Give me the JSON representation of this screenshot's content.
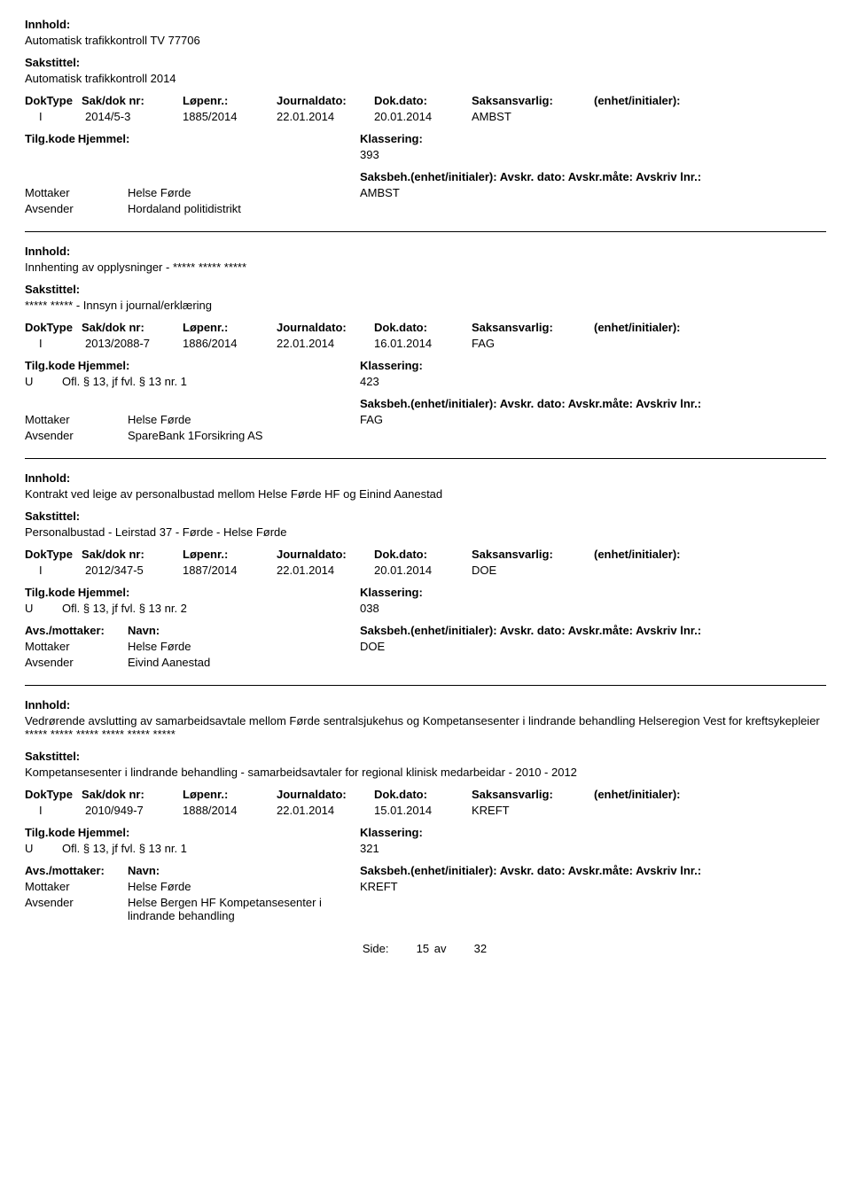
{
  "labels": {
    "innhold": "Innhold:",
    "sakstittel": "Sakstittel:",
    "doktype": "DokType",
    "sakdoknr": "Sak/dok nr:",
    "lopenr": "Løpenr.:",
    "journaldato": "Journaldato:",
    "dokdato": "Dok.dato:",
    "saksansvarlig": "Saksansvarlig:",
    "enhet": "(enhet/initialer):",
    "tilgkode": "Tilg.kode",
    "hjemmel": "Hjemmel:",
    "klassering": "Klassering:",
    "avsmottaker": "Avs./mottaker:",
    "navn": "Navn:",
    "saksbeh": "Saksbeh.(enhet/initialer):",
    "avskrdato": "Avskr. dato:",
    "avskrmate": "Avskr.måte:",
    "avskrivlnr": "Avskriv lnr.:"
  },
  "records": [
    {
      "innhold": "Automatisk trafikkontroll TV 77706",
      "sakstittel": "Automatisk trafikkontroll 2014",
      "doktype": "I",
      "sakdoknr": "2014/5-3",
      "lopenr": "1885/2014",
      "journaldato": "22.01.2014",
      "dokdato": "20.01.2014",
      "saksansvarlig": "AMBST",
      "tilgcode": "",
      "hjemmel": "",
      "klassering": "393",
      "showAvsHeader": false,
      "parties": [
        {
          "role": "Mottaker",
          "name": "Helse Førde",
          "saksbeh": "AMBST"
        },
        {
          "role": "Avsender",
          "name": "Hordaland politidistrikt",
          "saksbeh": ""
        }
      ]
    },
    {
      "innhold": "Innhenting av opplysninger - ***** ***** *****",
      "sakstittel": "***** ***** - Innsyn i journal/erklæring",
      "doktype": "I",
      "sakdoknr": "2013/2088-7",
      "lopenr": "1886/2014",
      "journaldato": "22.01.2014",
      "dokdato": "16.01.2014",
      "saksansvarlig": "FAG",
      "tilgcode": "U",
      "hjemmel": "Ofl. § 13, jf fvl. § 13 nr. 1",
      "klassering": "423",
      "showAvsHeader": false,
      "parties": [
        {
          "role": "Mottaker",
          "name": "Helse Førde",
          "saksbeh": "FAG"
        },
        {
          "role": "Avsender",
          "name": "SpareBank 1Forsikring AS",
          "saksbeh": ""
        }
      ]
    },
    {
      "innhold": "Kontrakt ved leige av personalbustad mellom Helse Førde HF og Einind Aanestad",
      "sakstittel": "Personalbustad - Leirstad 37 - Førde - Helse Førde",
      "doktype": "I",
      "sakdoknr": "2012/347-5",
      "lopenr": "1887/2014",
      "journaldato": "22.01.2014",
      "dokdato": "20.01.2014",
      "saksansvarlig": "DOE",
      "tilgcode": "U",
      "hjemmel": "Ofl. § 13, jf fvl. § 13 nr. 2",
      "klassering": "038",
      "showAvsHeader": true,
      "parties": [
        {
          "role": "Mottaker",
          "name": "Helse Førde",
          "saksbeh": "DOE"
        },
        {
          "role": "Avsender",
          "name": "Eivind Aanestad",
          "saksbeh": ""
        }
      ]
    },
    {
      "innhold": "Vedrørende avslutting av samarbeidsavtale mellom Førde sentralsjukehus og Kompetansesenter i lindrande behandling Helseregion Vest for kreftsykepleier ***** ***** ***** ***** ***** *****",
      "sakstittel": "Kompetansesenter i lindrande behandling - samarbeidsavtaler for regional  klinisk medarbeidar - 2010 - 2012",
      "doktype": "I",
      "sakdoknr": "2010/949-7",
      "lopenr": "1888/2014",
      "journaldato": "22.01.2014",
      "dokdato": "15.01.2014",
      "saksansvarlig": "KREFT",
      "tilgcode": "U",
      "hjemmel": "Ofl. § 13, jf fvl. § 13 nr. 1",
      "klassering": "321",
      "showAvsHeader": true,
      "parties": [
        {
          "role": "Mottaker",
          "name": "Helse Førde",
          "saksbeh": "KREFT"
        },
        {
          "role": "Avsender",
          "name": "Helse Bergen HF Kompetansesenter i lindrande behandling",
          "saksbeh": ""
        }
      ]
    }
  ],
  "footer": {
    "side": "Side:",
    "page": "15",
    "av": "av",
    "total": "32"
  }
}
